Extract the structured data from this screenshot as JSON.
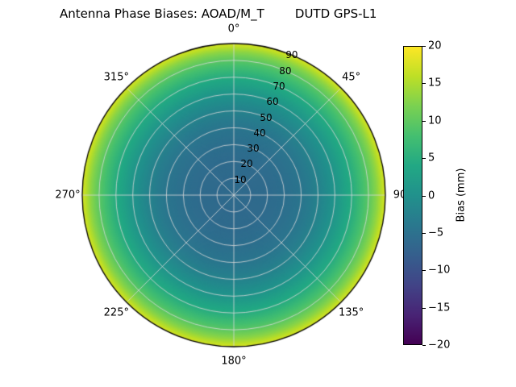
{
  "title": "Antenna Phase Biases: AOAD/M_T        DUTD GPS-L1",
  "chart_data": {
    "type": "heatmap",
    "projection": "polar",
    "title": "Antenna Phase Biases: AOAD/M_T        DUTD GPS-L1",
    "colormap": "viridis",
    "colormap_stops": [
      {
        "t": 0.0,
        "color": "#440154"
      },
      {
        "t": 0.1,
        "color": "#482475"
      },
      {
        "t": 0.2,
        "color": "#414487"
      },
      {
        "t": 0.3,
        "color": "#355f8d"
      },
      {
        "t": 0.4,
        "color": "#2a788e"
      },
      {
        "t": 0.5,
        "color": "#21918c"
      },
      {
        "t": 0.6,
        "color": "#22a884"
      },
      {
        "t": 0.7,
        "color": "#44bf70"
      },
      {
        "t": 0.8,
        "color": "#7ad151"
      },
      {
        "t": 0.9,
        "color": "#bddf26"
      },
      {
        "t": 1.0,
        "color": "#fde725"
      }
    ],
    "vmin": -20,
    "vmax": 20,
    "colorbar": {
      "label": "Bias (mm)",
      "tick_values": [
        20,
        15,
        10,
        5,
        0,
        -5,
        -10,
        -15,
        -20
      ],
      "tick_labels": [
        "20",
        "15",
        "10",
        "5",
        "0",
        "−5",
        "−10",
        "−15",
        "−20"
      ]
    },
    "angular_ticks": [
      {
        "angle_deg": 0,
        "label": "0°"
      },
      {
        "angle_deg": 45,
        "label": "45°"
      },
      {
        "angle_deg": 90,
        "label": "90"
      },
      {
        "angle_deg": 135,
        "label": "135°"
      },
      {
        "angle_deg": 180,
        "label": "180°"
      },
      {
        "angle_deg": 225,
        "label": "225°"
      },
      {
        "angle_deg": 270,
        "label": "270°"
      },
      {
        "angle_deg": 315,
        "label": "315°"
      }
    ],
    "radial_ticks": {
      "values": [
        10,
        20,
        30,
        40,
        50,
        60,
        70,
        80,
        90
      ],
      "labels": [
        "10",
        "20",
        "30",
        "40",
        "50",
        "60",
        "70",
        "80",
        "90"
      ],
      "max": 90,
      "label_angle_deg": 22.5
    },
    "radial_profile": {
      "zenith_deg": [
        0,
        10,
        20,
        30,
        40,
        50,
        60,
        70,
        80,
        85,
        90
      ],
      "bias_mm": [
        -6.0,
        -6.2,
        -6.0,
        -5.4,
        -4.4,
        -2.4,
        0.6,
        4.6,
        9.6,
        13.0,
        17.5
      ]
    },
    "grid_color": "#d9d9d9",
    "outline_color": "#000000",
    "background": "#ffffff"
  }
}
